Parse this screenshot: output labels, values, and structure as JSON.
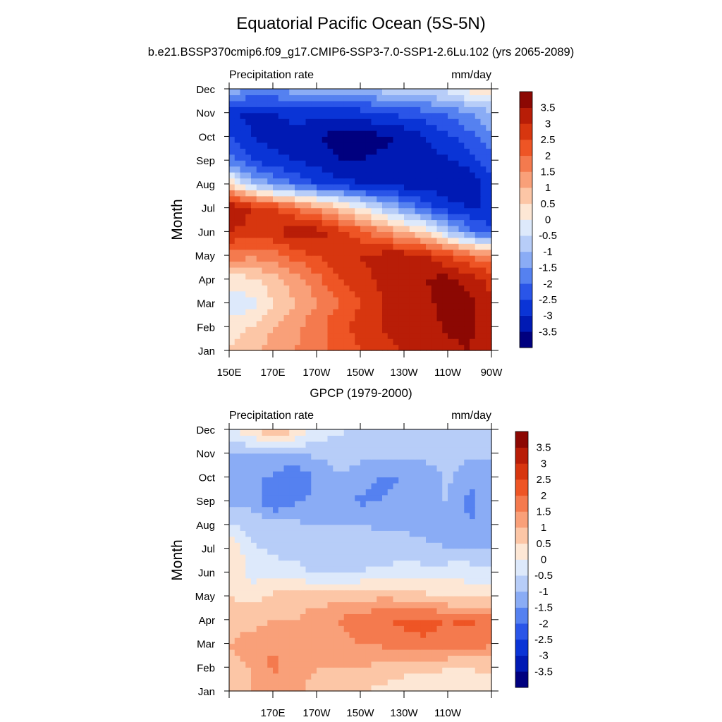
{
  "title": "Equatorial Pacific Ocean (5S-5N)",
  "subtitle": "b.e21.BSSP370cmip6.f09_g17.CMIP6-SSP3-7.0-SSP1-2.6Lu.102 (yrs 2065-2089)",
  "colors": {
    "levels": [
      "#00007f",
      "#001ab4",
      "#0a34d6",
      "#2a55e8",
      "#5581f0",
      "#8aacf5",
      "#b7cdf8",
      "#dde9fb",
      "#fde7d5",
      "#fcc6a6",
      "#f9a079",
      "#f47a4e",
      "#ee5525",
      "#d7360f",
      "#b81d07",
      "#8c0803"
    ]
  },
  "chart_data": [
    {
      "type": "heatmap",
      "panel_title": "",
      "left_label": "Precipitation rate",
      "right_label": "mm/day",
      "ylabel": "Month",
      "xlabel": "",
      "x_ticks": [
        "150E",
        "170E",
        "170W",
        "150W",
        "130W",
        "110W",
        "90W"
      ],
      "y_ticks": [
        "Jan",
        "Feb",
        "Mar",
        "Apr",
        "May",
        "Jun",
        "Jul",
        "Aug",
        "Sep",
        "Oct",
        "Nov",
        "Dec"
      ],
      "colorbar_levels": [
        "3.5",
        "3",
        "2.5",
        "2",
        "1.5",
        "1",
        "0.5",
        "0",
        "-0.5",
        "-1",
        "-1.5",
        "-2",
        "-2.5",
        "-3",
        "-3.5"
      ],
      "x_values": [
        150,
        160,
        170,
        180,
        190,
        200,
        210,
        220,
        230,
        240,
        250,
        260,
        270
      ],
      "values": [
        [
          0.6,
          0.8,
          1.2,
          1.5,
          1.8,
          2.2,
          2.5,
          2.9,
          3.0,
          3.1,
          3.4,
          3.5,
          3.2
        ],
        [
          0.2,
          0.5,
          1.0,
          1.3,
          1.8,
          2.3,
          2.7,
          3.0,
          3.1,
          3.2,
          3.6,
          3.6,
          3.2
        ],
        [
          -0.3,
          -0.2,
          0.5,
          1.0,
          1.5,
          2.0,
          2.5,
          3.0,
          3.2,
          3.4,
          3.7,
          3.6,
          3.1
        ],
        [
          0.2,
          0.4,
          0.8,
          1.2,
          1.8,
          2.5,
          2.8,
          3.1,
          3.4,
          3.5,
          3.7,
          3.3,
          2.8
        ],
        [
          1.8,
          1.6,
          1.8,
          2.2,
          2.5,
          2.8,
          3.0,
          3.2,
          3.3,
          3.0,
          2.5,
          2.0,
          1.5
        ],
        [
          3.0,
          2.8,
          2.9,
          3.4,
          3.3,
          2.8,
          2.2,
          1.6,
          1.0,
          0.4,
          -0.8,
          -1.8,
          -2.4
        ],
        [
          3.6,
          3.0,
          2.6,
          2.0,
          1.4,
          0.8,
          0.1,
          -0.8,
          -1.5,
          -2.2,
          -2.8,
          -3.0,
          -3.0
        ],
        [
          0.5,
          -0.8,
          -1.5,
          -2.0,
          -2.5,
          -2.8,
          -3.0,
          -3.2,
          -3.2,
          -3.3,
          -3.4,
          -3.3,
          -2.8
        ],
        [
          -1.8,
          -2.5,
          -2.8,
          -3.0,
          -3.2,
          -3.5,
          -3.5,
          -3.4,
          -3.3,
          -3.2,
          -3.1,
          -2.8,
          -2.2
        ],
        [
          -2.5,
          -3.0,
          -3.3,
          -3.2,
          -3.5,
          -3.7,
          -3.7,
          -3.6,
          -3.4,
          -3.0,
          -2.6,
          -2.2,
          -1.6
        ],
        [
          -3.0,
          -3.1,
          -3.0,
          -2.8,
          -2.8,
          -2.9,
          -2.7,
          -2.5,
          -2.3,
          -2.2,
          -1.9,
          -1.5,
          -1.1
        ],
        [
          -1.0,
          -1.5,
          -1.5,
          -1.2,
          -1.2,
          -1.3,
          -1.1,
          -0.8,
          -0.6,
          -0.5,
          -0.3,
          0.2,
          0.3
        ]
      ]
    },
    {
      "type": "heatmap",
      "panel_title": "GPCP (1979-2000)",
      "left_label": "Precipitation rate",
      "right_label": "mm/day",
      "ylabel": "Month",
      "xlabel": "",
      "x_ticks": [
        "",
        "170E",
        "170W",
        "150W",
        "130W",
        "110W",
        ""
      ],
      "y_ticks": [
        "Jan",
        "Feb",
        "Mar",
        "Apr",
        "May",
        "Jun",
        "Jul",
        "Aug",
        "Sep",
        "Oct",
        "Nov",
        "Dec"
      ],
      "colorbar_levels": [
        "3.5",
        "3",
        "2.5",
        "2",
        "1.5",
        "1",
        "0.5",
        "0",
        "-0.5",
        "-1",
        "-1.5",
        "-2",
        "-2.5",
        "-3",
        "-3.5"
      ],
      "x_values": [
        150,
        160,
        170,
        180,
        190,
        200,
        210,
        220,
        230,
        240,
        250,
        260,
        270
      ],
      "values": [
        [
          0.8,
          1.0,
          1.2,
          1.1,
          0.8,
          0.6,
          0.5,
          0.4,
          0.3,
          0.2,
          0.3,
          0.3,
          0.2
        ],
        [
          0.8,
          1.0,
          1.6,
          1.2,
          1.0,
          1.0,
          1.0,
          0.8,
          0.6,
          0.6,
          0.5,
          0.5,
          0.6
        ],
        [
          1.0,
          1.2,
          1.5,
          1.2,
          1.2,
          1.3,
          1.5,
          1.6,
          1.8,
          1.9,
          1.8,
          1.8,
          1.6
        ],
        [
          0.8,
          0.8,
          1.0,
          1.0,
          1.2,
          1.5,
          1.8,
          2.0,
          2.1,
          2.2,
          2.0,
          2.1,
          1.9
        ],
        [
          0.5,
          0.3,
          0.6,
          0.8,
          0.8,
          0.8,
          0.8,
          0.9,
          0.8,
          0.6,
          0.4,
          0.3,
          0.3
        ],
        [
          0.5,
          -0.2,
          -0.3,
          -0.4,
          -0.6,
          -0.6,
          -0.5,
          -0.4,
          -0.2,
          -0.3,
          -0.2,
          -0.2,
          -0.3
        ],
        [
          0.6,
          -0.4,
          -0.6,
          -0.6,
          -0.6,
          -0.7,
          -0.7,
          -0.8,
          -0.8,
          -0.9,
          -1.0,
          -1.0,
          -1.0
        ],
        [
          -0.5,
          -0.7,
          -0.8,
          -0.9,
          -1.0,
          -1.0,
          -1.0,
          -1.1,
          -1.1,
          -1.2,
          -1.3,
          -1.5,
          -1.3
        ],
        [
          -1.2,
          -1.1,
          -2.0,
          -1.6,
          -1.4,
          -1.2,
          -1.6,
          -1.5,
          -1.4,
          -1.0,
          -1.0,
          -1.6,
          -1.3
        ],
        [
          -1.5,
          -1.3,
          -1.6,
          -2.0,
          -1.4,
          -1.0,
          -1.3,
          -1.6,
          -1.5,
          -1.3,
          -0.9,
          -1.4,
          -1.5
        ],
        [
          -1.1,
          -1.0,
          -1.0,
          -1.0,
          -0.9,
          -0.8,
          -0.8,
          -0.8,
          -0.9,
          -0.8,
          -0.8,
          -0.8,
          -0.9
        ],
        [
          -0.2,
          0.5,
          1.0,
          0.6,
          -0.2,
          -0.4,
          -0.6,
          -0.6,
          -0.8,
          -0.8,
          -0.8,
          -0.8,
          -0.8
        ]
      ]
    }
  ]
}
